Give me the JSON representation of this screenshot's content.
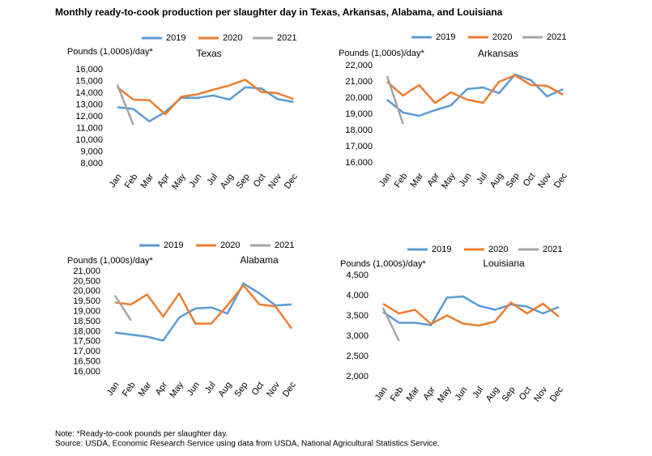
{
  "title": "Monthly ready-to-cook production per slaughter day in Texas, Arkansas, Alabama, and Louisiana",
  "note": "Note: *Ready-to-cook pounds per slaughter day.",
  "source": "Source: USDA, Economic Research Service using data from USDA, National Agricultural Statistics Service.",
  "chart_data": [
    {
      "type": "line",
      "title": "Texas",
      "ylabel": "Pounds (1,000s)/day*",
      "categories": [
        "Jan",
        "Feb",
        "Mar",
        "Apr",
        "May",
        "Jun",
        "Jul",
        "Aug",
        "Sep",
        "Oct",
        "Nov",
        "Dec"
      ],
      "ylim": [
        8000,
        16000
      ],
      "yticks": [
        {
          "value": 8000,
          "label": "8,000"
        },
        {
          "value": 9000,
          "label": "9,000"
        },
        {
          "value": 10000,
          "label": "10,000"
        },
        {
          "value": 11000,
          "label": "11,000"
        },
        {
          "value": 12000,
          "label": "12,000"
        },
        {
          "value": 13000,
          "label": "13,000"
        },
        {
          "value": 14000,
          "label": "14,000"
        },
        {
          "value": 15000,
          "label": "15,000"
        },
        {
          "value": 16000,
          "label": "16,000"
        }
      ],
      "series": [
        {
          "name": "2019",
          "color": "#5b9bd5",
          "values": [
            12800,
            12650,
            11600,
            12400,
            13600,
            13600,
            13800,
            13450,
            14500,
            14400,
            13500,
            13250
          ]
        },
        {
          "name": "2020",
          "color": "#ed7d31",
          "values": [
            14500,
            13450,
            13400,
            12200,
            13700,
            13900,
            14300,
            14650,
            15150,
            14100,
            14000,
            13500
          ]
        },
        {
          "name": "2021",
          "color": "#a5a5a5",
          "values": [
            14700,
            11300,
            null,
            null,
            null,
            null,
            null,
            null,
            null,
            null,
            null,
            null
          ]
        }
      ]
    },
    {
      "type": "line",
      "title": "Arkansas",
      "ylabel": "Pounds (1,000s)/day*",
      "categories": [
        "Jan",
        "Feb",
        "Mar",
        "Apr",
        "May",
        "Jun",
        "Jul",
        "Aug",
        "Sep",
        "Oct",
        "Nov",
        "Dec"
      ],
      "ylim": [
        16000,
        22000
      ],
      "yticks": [
        {
          "value": 16000,
          "label": "16,000"
        },
        {
          "value": 17000,
          "label": "17,000"
        },
        {
          "value": 18000,
          "label": "18,000"
        },
        {
          "value": 19000,
          "label": "19,000"
        },
        {
          "value": 20000,
          "label": "20,000"
        },
        {
          "value": 21000,
          "label": "21,000"
        },
        {
          "value": 22000,
          "label": "22,000"
        }
      ],
      "series": [
        {
          "name": "2019",
          "color": "#5b9bd5",
          "values": [
            19900,
            19100,
            18900,
            19250,
            19550,
            20550,
            20650,
            20300,
            21450,
            21100,
            20100,
            20550
          ]
        },
        {
          "name": "2020",
          "color": "#ed7d31",
          "values": [
            21000,
            20150,
            20800,
            19700,
            20350,
            19900,
            19700,
            21000,
            21400,
            20800,
            20750,
            20200
          ]
        },
        {
          "name": "2021",
          "color": "#a5a5a5",
          "values": [
            21350,
            18400,
            null,
            null,
            null,
            null,
            null,
            null,
            null,
            null,
            null,
            null
          ]
        }
      ]
    },
    {
      "type": "line",
      "title": "Alabama",
      "ylabel": "Pounds (1,000s)/day*",
      "categories": [
        "Jan",
        "Feb",
        "Mar",
        "Apr",
        "May",
        "Jun",
        "Jul",
        "Aug",
        "Sep",
        "Oct",
        "Nov",
        "Dec"
      ],
      "ylim": [
        16000,
        21000
      ],
      "yticks": [
        {
          "value": 16000,
          "label": "16,000"
        },
        {
          "value": 16500,
          "label": "16,500"
        },
        {
          "value": 17000,
          "label": "17,000"
        },
        {
          "value": 17500,
          "label": "17,500"
        },
        {
          "value": 18000,
          "label": "18,000"
        },
        {
          "value": 18500,
          "label": "18,500"
        },
        {
          "value": 19000,
          "label": "19,000"
        },
        {
          "value": 19500,
          "label": "19,500"
        },
        {
          "value": 20000,
          "label": "20,000"
        },
        {
          "value": 20500,
          "label": "20,500"
        },
        {
          "value": 21000,
          "label": "21,000"
        }
      ],
      "series": [
        {
          "name": "2019",
          "color": "#5b9bd5",
          "values": [
            17950,
            17850,
            17750,
            17550,
            18700,
            19150,
            19200,
            18900,
            20400,
            19900,
            19300,
            19350
          ]
        },
        {
          "name": "2020",
          "color": "#ed7d31",
          "values": [
            19450,
            19350,
            19850,
            18750,
            19900,
            18400,
            18400,
            19300,
            20300,
            19350,
            19250,
            18150
          ]
        },
        {
          "name": "2021",
          "color": "#a5a5a5",
          "values": [
            19800,
            18550,
            null,
            null,
            null,
            null,
            null,
            null,
            null,
            null,
            null,
            null
          ]
        }
      ]
    },
    {
      "type": "line",
      "title": "Louisiana",
      "ylabel": "Pounds (1,000s)/day*",
      "categories": [
        "Jan",
        "Feb",
        "Mar",
        "Apr",
        "May",
        "Jun",
        "Jul",
        "Aug",
        "Sep",
        "Oct",
        "Nov",
        "Dec"
      ],
      "ylim": [
        2000,
        4500
      ],
      "yticks": [
        {
          "value": 2000,
          "label": "2,000"
        },
        {
          "value": 2500,
          "label": "2,500"
        },
        {
          "value": 3000,
          "label": "3,000"
        },
        {
          "value": 3500,
          "label": "3,500"
        },
        {
          "value": 4000,
          "label": "4,000"
        },
        {
          "value": 4500,
          "label": "4,500"
        }
      ],
      "series": [
        {
          "name": "2019",
          "color": "#5b9bd5",
          "values": [
            3600,
            3330,
            3330,
            3270,
            3950,
            3980,
            3750,
            3650,
            3780,
            3730,
            3560,
            3720
          ]
        },
        {
          "name": "2020",
          "color": "#ed7d31",
          "values": [
            3800,
            3560,
            3650,
            3300,
            3510,
            3310,
            3260,
            3360,
            3830,
            3560,
            3800,
            3480
          ]
        },
        {
          "name": "2021",
          "color": "#a5a5a5",
          "values": [
            3700,
            2880,
            null,
            null,
            null,
            null,
            null,
            null,
            null,
            null,
            null,
            null
          ]
        }
      ]
    }
  ]
}
